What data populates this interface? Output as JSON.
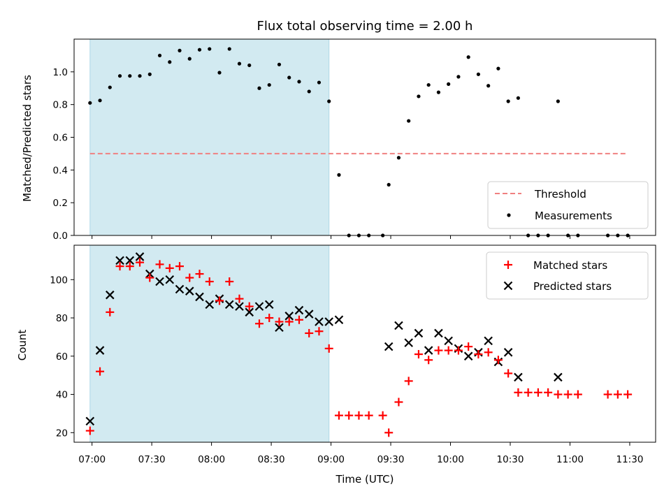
{
  "chart_data": [
    {
      "type": "scatter",
      "panel": "top",
      "title": "Flux total observing time = 2.00 h",
      "ylabel": "Matched/Predicted stars",
      "ylim": [
        0,
        1.2
      ],
      "yticks": [
        "0.0",
        "0.2",
        "0.4",
        "0.6",
        "0.8",
        "1.0"
      ],
      "xlim": [
        "06:51",
        "11:43"
      ],
      "shaded_region": [
        "06:59",
        "08:59"
      ],
      "shade_color": "#add8e6",
      "threshold": {
        "name": "Threshold",
        "value": 0.5,
        "x_start": "06:59",
        "x_end": "11:29",
        "color": "#f08080"
      },
      "series": [
        {
          "name": "Measurements",
          "color": "#000000",
          "points": [
            [
              "06:59",
              0.81
            ],
            [
              "07:04",
              0.825
            ],
            [
              "07:09",
              0.905
            ],
            [
              "07:14",
              0.975
            ],
            [
              "07:19",
              0.975
            ],
            [
              "07:24",
              0.975
            ],
            [
              "07:29",
              0.985
            ],
            [
              "07:34",
              1.1
            ],
            [
              "07:39",
              1.06
            ],
            [
              "07:44",
              1.13
            ],
            [
              "07:49",
              1.08
            ],
            [
              "07:54",
              1.135
            ],
            [
              "07:59",
              1.14
            ],
            [
              "08:04",
              0.995
            ],
            [
              "08:09",
              1.14
            ],
            [
              "08:14",
              1.05
            ],
            [
              "08:19",
              1.04
            ],
            [
              "08:24",
              0.9
            ],
            [
              "08:29",
              0.92
            ],
            [
              "08:34",
              1.045
            ],
            [
              "08:39",
              0.965
            ],
            [
              "08:44",
              0.94
            ],
            [
              "08:49",
              0.88
            ],
            [
              "08:54",
              0.935
            ],
            [
              "08:59",
              0.82
            ],
            [
              "09:04",
              0.37
            ],
            [
              "09:09",
              0.0
            ],
            [
              "09:14",
              0.0
            ],
            [
              "09:19",
              0.0
            ],
            [
              "09:26",
              0.0
            ],
            [
              "09:29",
              0.31
            ],
            [
              "09:34",
              0.475
            ],
            [
              "09:39",
              0.7
            ],
            [
              "09:44",
              0.85
            ],
            [
              "09:49",
              0.92
            ],
            [
              "09:54",
              0.875
            ],
            [
              "09:59",
              0.925
            ],
            [
              "10:04",
              0.97
            ],
            [
              "10:09",
              1.09
            ],
            [
              "10:14",
              0.985
            ],
            [
              "10:19",
              0.915
            ],
            [
              "10:24",
              1.02
            ],
            [
              "10:29",
              0.82
            ],
            [
              "10:34",
              0.84
            ],
            [
              "10:39",
              0.0
            ],
            [
              "10:44",
              0.0
            ],
            [
              "10:49",
              0.0
            ],
            [
              "10:54",
              0.82
            ],
            [
              "10:59",
              0.0
            ],
            [
              "11:04",
              0.0
            ],
            [
              "11:19",
              0.0
            ],
            [
              "11:24",
              0.0
            ],
            [
              "11:29",
              0.0
            ]
          ]
        }
      ],
      "legend": {
        "position": "lower-right",
        "entries": [
          "Threshold",
          "Measurements"
        ]
      }
    },
    {
      "type": "scatter",
      "panel": "bottom",
      "xlabel": "Time (UTC)",
      "ylabel": "Count",
      "ylim": [
        15,
        118
      ],
      "yticks": [
        "20",
        "40",
        "60",
        "80",
        "100"
      ],
      "xlim": [
        "06:51",
        "11:43"
      ],
      "xticks": [
        "07:00",
        "07:30",
        "08:00",
        "08:30",
        "09:00",
        "09:30",
        "10:00",
        "10:30",
        "11:00",
        "11:30"
      ],
      "shaded_region": [
        "06:59",
        "08:59"
      ],
      "shade_color": "#add8e6",
      "series": [
        {
          "name": "Matched stars",
          "marker": "+",
          "color": "#ff0000",
          "points": [
            [
              "06:59",
              21
            ],
            [
              "07:04",
              52
            ],
            [
              "07:09",
              83
            ],
            [
              "07:14",
              107
            ],
            [
              "07:19",
              107
            ],
            [
              "07:24",
              109
            ],
            [
              "07:29",
              101
            ],
            [
              "07:34",
              108
            ],
            [
              "07:39",
              106
            ],
            [
              "07:44",
              107
            ],
            [
              "07:49",
              101
            ],
            [
              "07:54",
              103
            ],
            [
              "07:59",
              99
            ],
            [
              "08:04",
              89
            ],
            [
              "08:09",
              99
            ],
            [
              "08:14",
              90
            ],
            [
              "08:19",
              86
            ],
            [
              "08:24",
              77
            ],
            [
              "08:29",
              80
            ],
            [
              "08:34",
              78
            ],
            [
              "08:39",
              78
            ],
            [
              "08:44",
              79
            ],
            [
              "08:49",
              72
            ],
            [
              "08:54",
              73
            ],
            [
              "08:59",
              64
            ],
            [
              "09:04",
              29
            ],
            [
              "09:09",
              29
            ],
            [
              "09:14",
              29
            ],
            [
              "09:19",
              29
            ],
            [
              "09:26",
              29
            ],
            [
              "09:29",
              20
            ],
            [
              "09:34",
              36
            ],
            [
              "09:39",
              47
            ],
            [
              "09:44",
              61
            ],
            [
              "09:49",
              58
            ],
            [
              "09:54",
              63
            ],
            [
              "09:59",
              63
            ],
            [
              "10:04",
              63
            ],
            [
              "10:09",
              65
            ],
            [
              "10:14",
              61
            ],
            [
              "10:19",
              62
            ],
            [
              "10:24",
              58
            ],
            [
              "10:29",
              51
            ],
            [
              "10:34",
              41
            ],
            [
              "10:39",
              41
            ],
            [
              "10:44",
              41
            ],
            [
              "10:49",
              41
            ],
            [
              "10:54",
              40
            ],
            [
              "10:59",
              40
            ],
            [
              "11:04",
              40
            ],
            [
              "11:19",
              40
            ],
            [
              "11:24",
              40
            ],
            [
              "11:29",
              40
            ]
          ]
        },
        {
          "name": "Predicted stars",
          "marker": "x",
          "color": "#000000",
          "points": [
            [
              "06:59",
              26
            ],
            [
              "07:04",
              63
            ],
            [
              "07:09",
              92
            ],
            [
              "07:14",
              110
            ],
            [
              "07:19",
              110
            ],
            [
              "07:24",
              112
            ],
            [
              "07:29",
              103
            ],
            [
              "07:34",
              99
            ],
            [
              "07:39",
              100
            ],
            [
              "07:44",
              95
            ],
            [
              "07:49",
              94
            ],
            [
              "07:54",
              91
            ],
            [
              "07:59",
              87
            ],
            [
              "08:04",
              90
            ],
            [
              "08:09",
              87
            ],
            [
              "08:14",
              86
            ],
            [
              "08:19",
              83
            ],
            [
              "08:24",
              86
            ],
            [
              "08:29",
              87
            ],
            [
              "08:34",
              75
            ],
            [
              "08:39",
              81
            ],
            [
              "08:44",
              84
            ],
            [
              "08:49",
              82
            ],
            [
              "08:54",
              78
            ],
            [
              "08:59",
              78
            ],
            [
              "09:04",
              79
            ],
            [
              "09:29",
              65
            ],
            [
              "09:34",
              76
            ],
            [
              "09:39",
              67
            ],
            [
              "09:44",
              72
            ],
            [
              "09:49",
              63
            ],
            [
              "09:54",
              72
            ],
            [
              "09:59",
              68
            ],
            [
              "10:04",
              64
            ],
            [
              "10:09",
              60
            ],
            [
              "10:14",
              62
            ],
            [
              "10:19",
              68
            ],
            [
              "10:24",
              57
            ],
            [
              "10:29",
              62
            ],
            [
              "10:34",
              49
            ],
            [
              "10:54",
              49
            ]
          ]
        }
      ],
      "legend": {
        "position": "top-right",
        "entries": [
          "Matched stars",
          "Predicted stars"
        ]
      }
    }
  ]
}
